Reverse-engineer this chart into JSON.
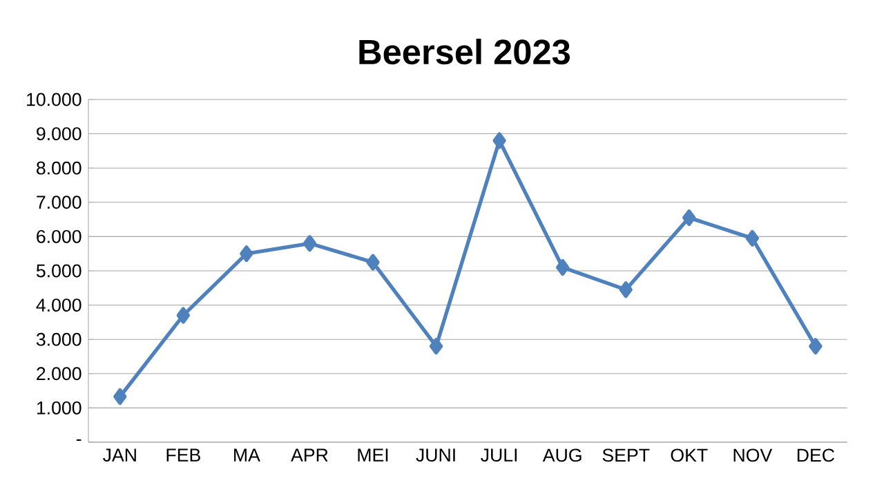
{
  "chart_data": {
    "type": "line",
    "title": "Beersel 2023",
    "categories": [
      "JAN",
      "FEB",
      "MA",
      "APR",
      "MEI",
      "JUNI",
      "JULI",
      "AUG",
      "SEPT",
      "OKT",
      "NOV",
      "DEC"
    ],
    "values": [
      1330,
      3700,
      5500,
      5800,
      5250,
      2800,
      8800,
      5100,
      4450,
      6550,
      5950,
      2800
    ],
    "color": "#4f81bd",
    "ylim": [
      0,
      10000
    ],
    "yticks": [
      {
        "value": 0,
        "label": "-"
      },
      {
        "value": 1000,
        "label": "1.000"
      },
      {
        "value": 2000,
        "label": "2.000"
      },
      {
        "value": 3000,
        "label": "3.000"
      },
      {
        "value": 4000,
        "label": "4.000"
      },
      {
        "value": 5000,
        "label": "5.000"
      },
      {
        "value": 6000,
        "label": "6.000"
      },
      {
        "value": 7000,
        "label": "7.000"
      },
      {
        "value": 8000,
        "label": "8.000"
      },
      {
        "value": 9000,
        "label": "9.000"
      },
      {
        "value": 10000,
        "label": "10.000"
      }
    ],
    "grid": "y",
    "marker": "diamond",
    "line_style": "solid"
  }
}
